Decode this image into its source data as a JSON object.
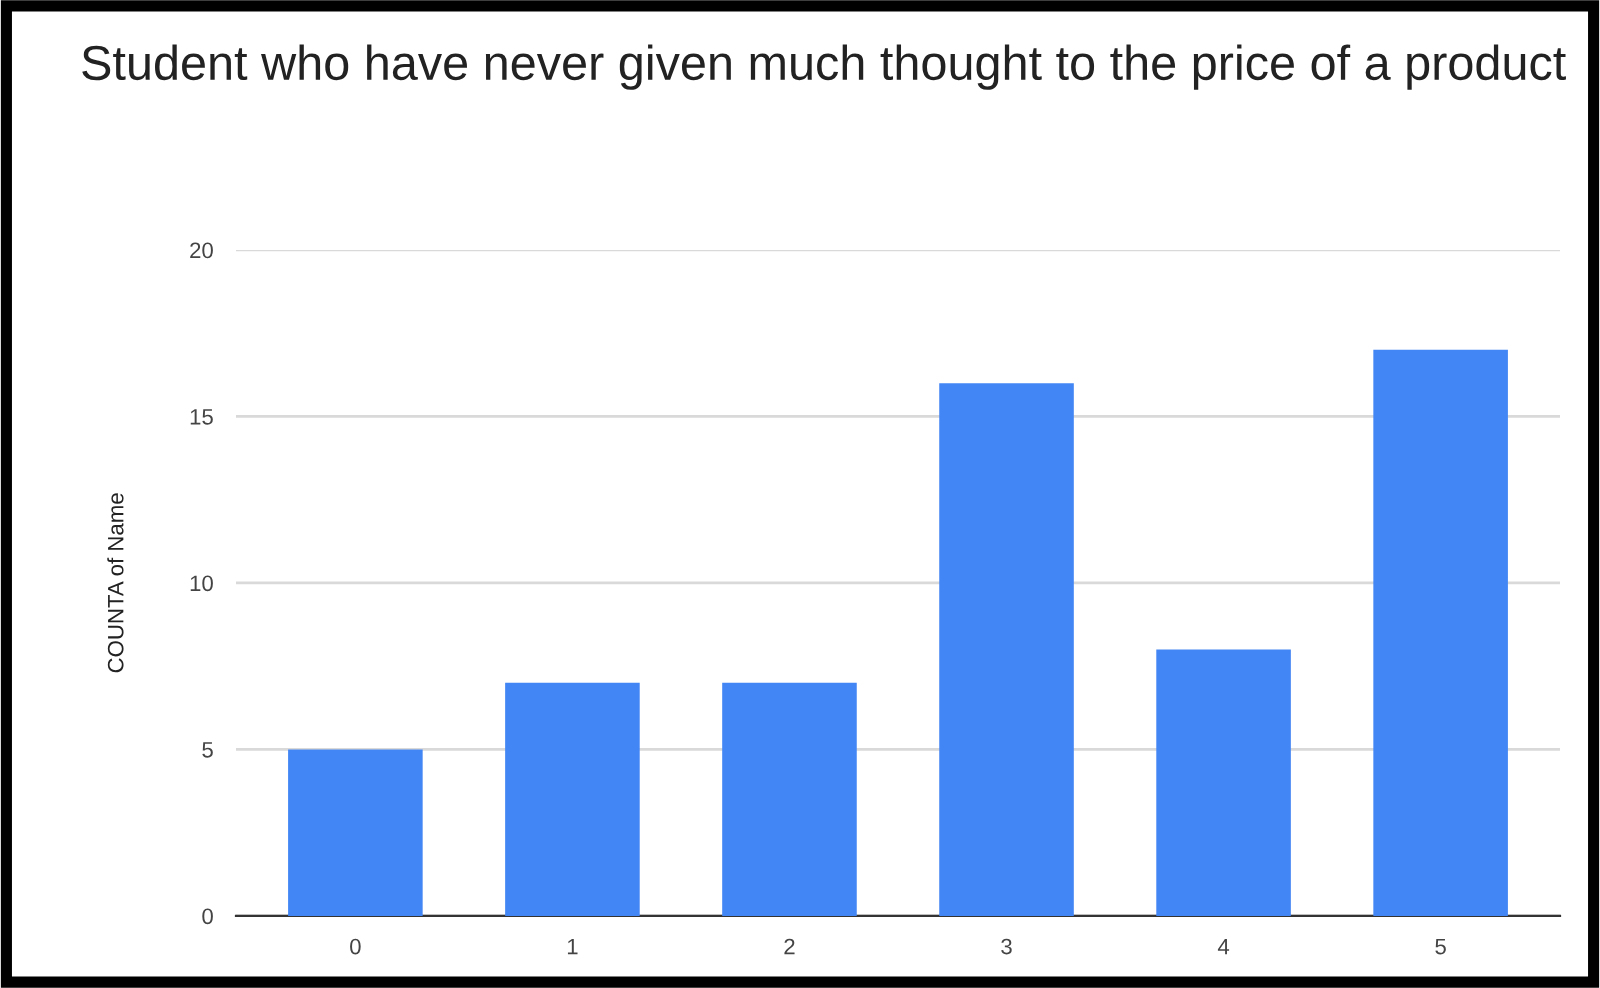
{
  "chart_data": {
    "type": "bar",
    "title": "Student who have never given much thought to the price of a product",
    "ylabel": "COUNTA of Name",
    "categories": [
      "0",
      "1",
      "2",
      "3",
      "4",
      "5"
    ],
    "values": [
      5,
      7,
      7,
      16,
      8,
      17
    ],
    "color": "#4285f4",
    "ylim": [
      0,
      20
    ],
    "yticks": [
      0,
      5,
      10,
      15,
      20
    ],
    "grid": "y"
  }
}
